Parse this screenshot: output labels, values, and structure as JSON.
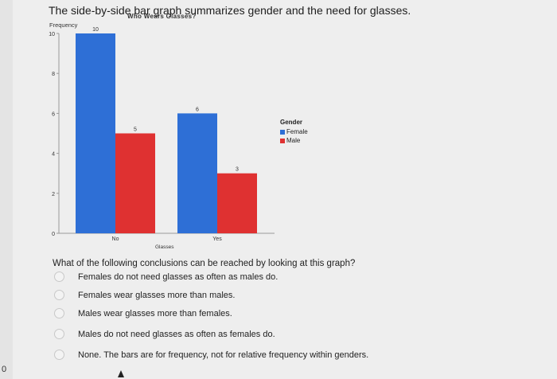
{
  "question": {
    "title": "The side-by-side bar graph summarizes gender and the need for glasses.",
    "prompt": "What of the following conclusions can be reached by looking at this graph?",
    "options": [
      "Females do not need glasses as often as males do.",
      "Females wear glasses more than males.",
      "Males wear glasses more than females.",
      "Males do not need glasses as often as females do.",
      "None. The bars are for frequency, not for relative frequency within genders."
    ]
  },
  "edge_marks": [
    "0"
  ],
  "chart_data": {
    "type": "bar",
    "title": "Who Wears Glasses?",
    "xlabel": "Glasses",
    "ylabel": "Frequency",
    "categories": [
      "No",
      "Yes"
    ],
    "series": [
      {
        "name": "Female",
        "values": [
          10,
          6
        ],
        "color": "#2e6fd6"
      },
      {
        "name": "Male",
        "values": [
          5,
          3
        ],
        "color": "#df3131"
      }
    ],
    "yticks": [
      0,
      2,
      4,
      6,
      8,
      10
    ],
    "ylim": [
      0,
      10
    ],
    "legend": {
      "title": "Gender",
      "placement": "right"
    },
    "grid": false
  }
}
